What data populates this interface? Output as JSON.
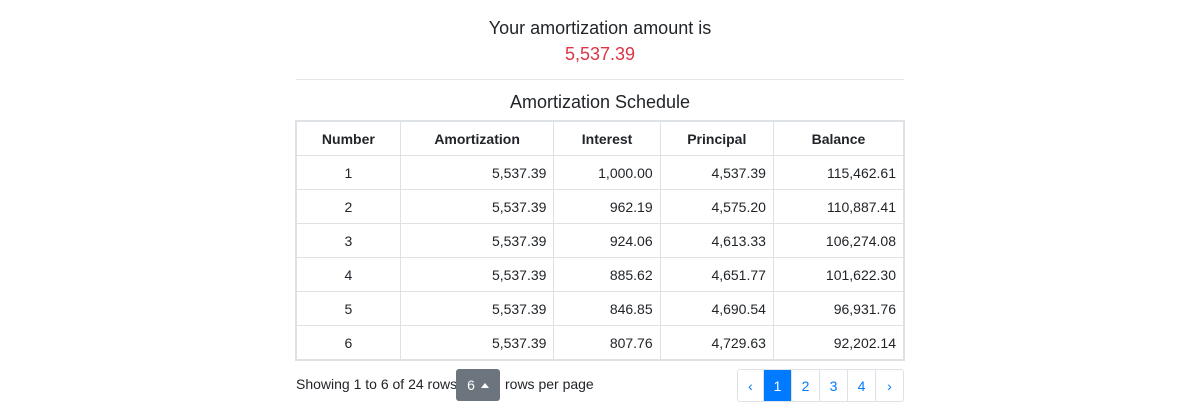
{
  "header": {
    "title": "Your amortization amount is",
    "amount": "5,537.39"
  },
  "schedule": {
    "title": "Amortization Schedule",
    "columns": [
      "Number",
      "Amortization",
      "Interest",
      "Principal",
      "Balance"
    ],
    "rows": [
      [
        "1",
        "5,537.39",
        "1,000.00",
        "4,537.39",
        "115,462.61"
      ],
      [
        "2",
        "5,537.39",
        "962.19",
        "4,575.20",
        "110,887.41"
      ],
      [
        "3",
        "5,537.39",
        "924.06",
        "4,613.33",
        "106,274.08"
      ],
      [
        "4",
        "5,537.39",
        "885.62",
        "4,651.77",
        "101,622.30"
      ],
      [
        "5",
        "5,537.39",
        "846.85",
        "4,690.54",
        "96,931.76"
      ],
      [
        "6",
        "5,537.39",
        "807.76",
        "4,729.63",
        "92,202.14"
      ]
    ]
  },
  "footer": {
    "summary": "Showing 1 to 6 of 24 rows",
    "page_size": "6",
    "page_size_label": "rows per page"
  },
  "pagination": {
    "prev": "‹",
    "pages": [
      "1",
      "2",
      "3",
      "4"
    ],
    "next": "›",
    "active_page": 0
  }
}
